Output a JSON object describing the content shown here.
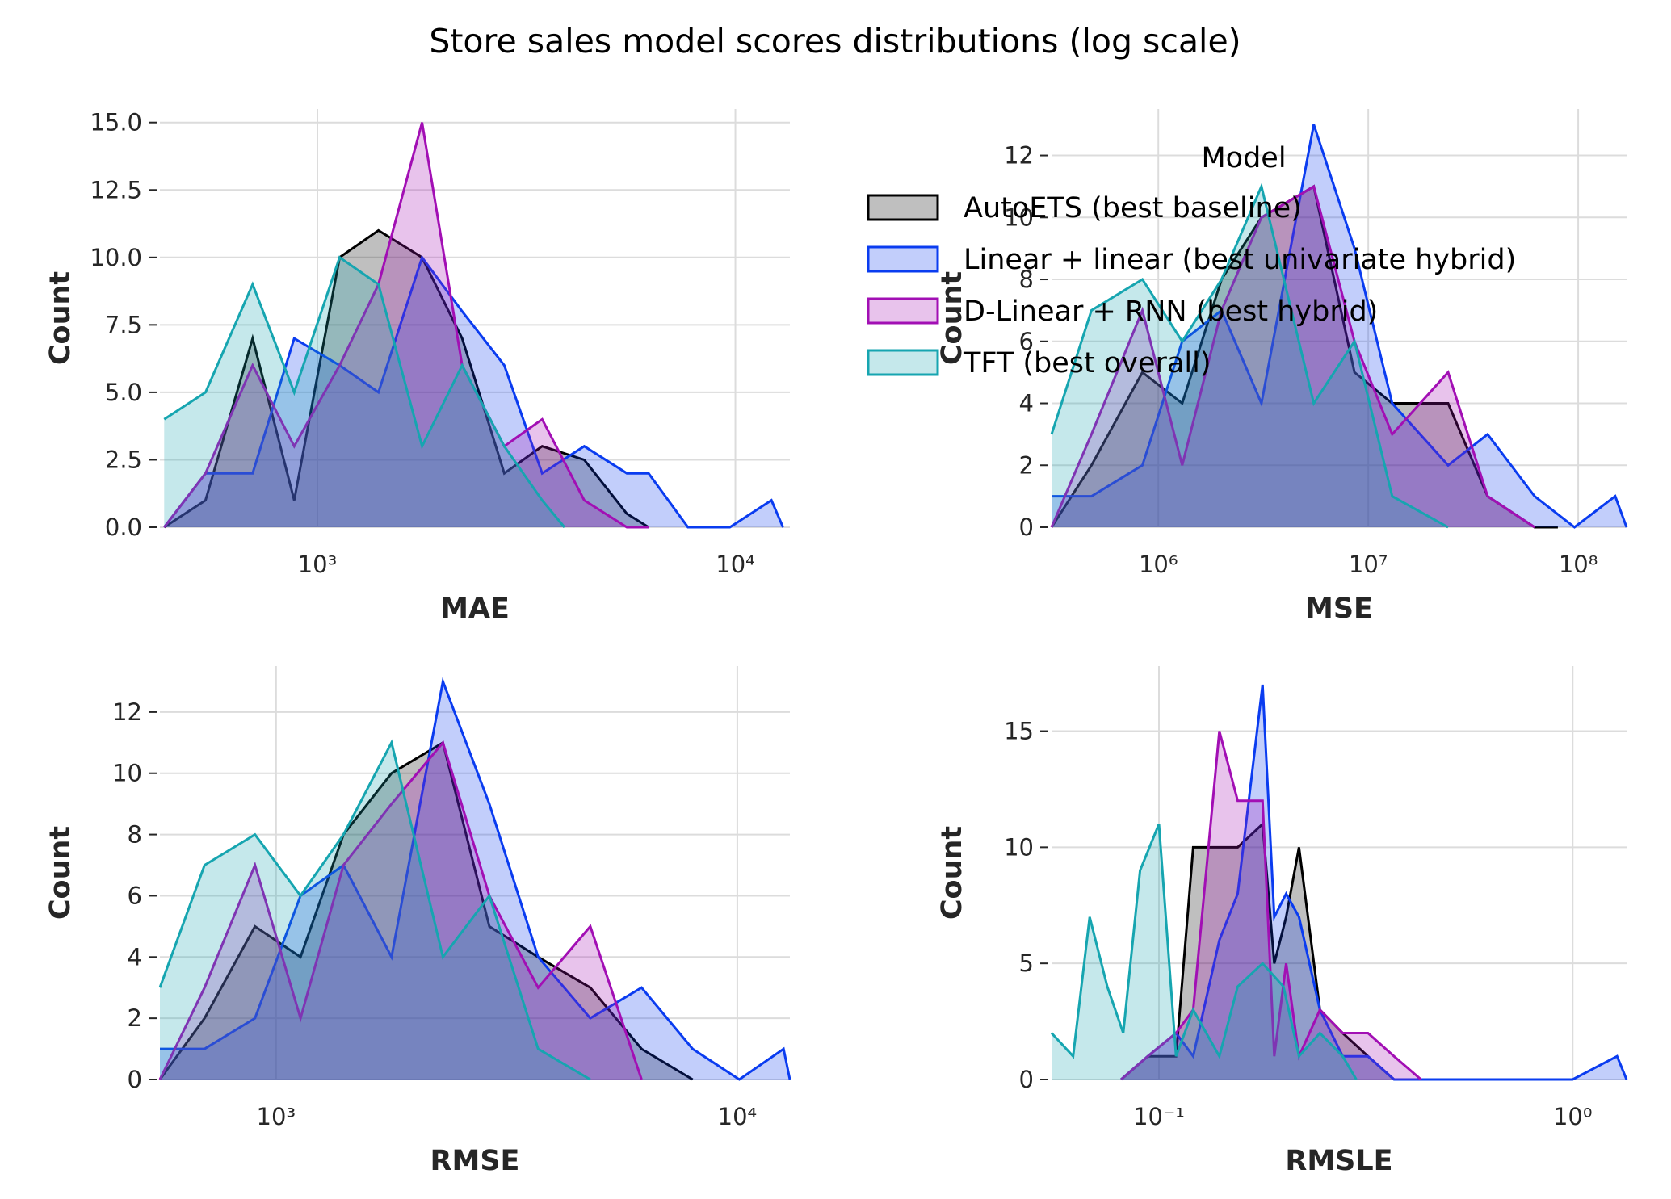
{
  "title": "Store sales model scores distributions (log scale)",
  "legend": {
    "title": "Model",
    "placement": "upper-right of top-left panel, overlapping top-right panel"
  },
  "colors": {
    "AutoETS (best baseline)": "#000000",
    "Linear + linear (best univariate hybrid)": "#0a3cf0",
    "D-Linear + RNN (best hybrid)": "#a20fb4",
    "TFT (best overall)": "#16a5b0",
    "grid": "#dcdcdc",
    "text": "#262626"
  },
  "chart_data": [
    {
      "type": "area",
      "xscale": "log",
      "xlabel": "MAE",
      "ylabel": "Count",
      "xlim": [
        420,
        13500
      ],
      "ylim": [
        0,
        15.5
      ],
      "xticks": [
        {
          "value": 1000,
          "label": "10³"
        },
        {
          "value": 10000,
          "label": "10⁴"
        }
      ],
      "yticks": [
        {
          "value": 0,
          "label": "0.0"
        },
        {
          "value": 2.5,
          "label": "2.5"
        },
        {
          "value": 5,
          "label": "5.0"
        },
        {
          "value": 7.5,
          "label": "7.5"
        },
        {
          "value": 10,
          "label": "10.0"
        },
        {
          "value": 12.5,
          "label": "12.5"
        },
        {
          "value": 15,
          "label": "15.0"
        }
      ],
      "grid": true,
      "series": [
        {
          "name": "AutoETS (best baseline)",
          "x": [
            430,
            540,
            700,
            880,
            1130,
            1400,
            1780,
            2220,
            2800,
            3450,
            4350,
            5500,
            6200
          ],
          "values": [
            0,
            1,
            7,
            1,
            10,
            11,
            10,
            7,
            2,
            3,
            2.5,
            0.5,
            0
          ]
        },
        {
          "name": "Linear + linear (best univariate hybrid)",
          "x": [
            430,
            540,
            700,
            880,
            1130,
            1400,
            1780,
            2220,
            2800,
            3450,
            4350,
            5500,
            6200,
            7700,
            9700,
            12200,
            13000
          ],
          "values": [
            0,
            2,
            2,
            7,
            6,
            5,
            10,
            8,
            6,
            2,
            3,
            2,
            2,
            0,
            0,
            1,
            0
          ]
        },
        {
          "name": "D-Linear + RNN (best hybrid)",
          "x": [
            430,
            540,
            700,
            880,
            1130,
            1400,
            1780,
            2220,
            2800,
            3450,
            4350,
            5500,
            6200
          ],
          "values": [
            0,
            2,
            6,
            3,
            6,
            9,
            15,
            6,
            3,
            4,
            1,
            0,
            0
          ]
        },
        {
          "name": "TFT (best overall)",
          "x": [
            430,
            540,
            700,
            880,
            1130,
            1400,
            1780,
            2220,
            2800,
            3450,
            3900
          ],
          "values": [
            4,
            5,
            9,
            5,
            10,
            9,
            3,
            6,
            3,
            1,
            0
          ]
        }
      ]
    },
    {
      "type": "area",
      "xscale": "log",
      "xlabel": "MSE",
      "ylabel": "Count",
      "xlim": [
        310000,
        170000000
      ],
      "ylim": [
        0,
        13.5
      ],
      "xticks": [
        {
          "value": 1000000,
          "label": "10⁶"
        },
        {
          "value": 10000000,
          "label": "10⁷"
        },
        {
          "value": 100000000,
          "label": "10⁸"
        }
      ],
      "yticks": [
        {
          "value": 0,
          "label": "0"
        },
        {
          "value": 2,
          "label": "2"
        },
        {
          "value": 4,
          "label": "4"
        },
        {
          "value": 6,
          "label": "6"
        },
        {
          "value": 8,
          "label": "8"
        },
        {
          "value": 10,
          "label": "10"
        },
        {
          "value": 12,
          "label": "12"
        }
      ],
      "grid": true,
      "series": [
        {
          "name": "AutoETS (best baseline)",
          "x": [
            310000,
            480000,
            840000,
            1300000,
            2000000,
            3100000,
            5500000,
            8600000,
            13000000,
            24000000,
            37000000,
            62000000,
            80000000
          ],
          "values": [
            0,
            2,
            5,
            4,
            8,
            10,
            11,
            5,
            4,
            4,
            1,
            0,
            0
          ]
        },
        {
          "name": "Linear + linear (best univariate hybrid)",
          "x": [
            310000,
            480000,
            840000,
            1300000,
            2000000,
            3100000,
            5500000,
            8600000,
            13000000,
            24000000,
            37000000,
            62000000,
            96000000,
            150000000,
            170000000
          ],
          "values": [
            1,
            1,
            2,
            6,
            7,
            4,
            13,
            9,
            4,
            2,
            3,
            1,
            0,
            1,
            0
          ]
        },
        {
          "name": "D-Linear + RNN (best hybrid)",
          "x": [
            310000,
            480000,
            840000,
            1300000,
            2000000,
            3100000,
            5500000,
            8600000,
            13000000,
            24000000,
            37000000,
            62000000
          ],
          "values": [
            0,
            3,
            7,
            2,
            7,
            10,
            11,
            6,
            3,
            5,
            1,
            0
          ]
        },
        {
          "name": "TFT (best overall)",
          "x": [
            310000,
            480000,
            840000,
            1300000,
            2000000,
            3100000,
            5500000,
            8600000,
            13000000,
            24000000
          ],
          "values": [
            3,
            7,
            8,
            6,
            8,
            11,
            4,
            6,
            1,
            0
          ]
        }
      ]
    },
    {
      "type": "area",
      "xscale": "log",
      "xlabel": "RMSE",
      "ylabel": "Count",
      "xlim": [
        560,
        13000
      ],
      "ylim": [
        0,
        13.5
      ],
      "xticks": [
        {
          "value": 1000,
          "label": "10³"
        },
        {
          "value": 10000,
          "label": "10⁴"
        }
      ],
      "yticks": [
        {
          "value": 0,
          "label": "0"
        },
        {
          "value": 2,
          "label": "2"
        },
        {
          "value": 4,
          "label": "4"
        },
        {
          "value": 6,
          "label": "6"
        },
        {
          "value": 8,
          "label": "8"
        },
        {
          "value": 10,
          "label": "10"
        },
        {
          "value": 12,
          "label": "12"
        }
      ],
      "grid": true,
      "series": [
        {
          "name": "AutoETS (best baseline)",
          "x": [
            560,
            700,
            900,
            1130,
            1400,
            1780,
            2300,
            2900,
            3700,
            4800,
            6200,
            8000
          ],
          "values": [
            0,
            2,
            5,
            4,
            8,
            10,
            11,
            5,
            4,
            3,
            1,
            0
          ]
        },
        {
          "name": "Linear + linear (best univariate hybrid)",
          "x": [
            560,
            700,
            900,
            1130,
            1400,
            1780,
            2300,
            2900,
            3700,
            4800,
            6200,
            8000,
            10100,
            12600,
            13000
          ],
          "values": [
            1,
            1,
            2,
            6,
            7,
            4,
            13,
            9,
            4,
            2,
            3,
            1,
            0,
            1,
            0
          ]
        },
        {
          "name": "D-Linear + RNN (best hybrid)",
          "x": [
            560,
            700,
            900,
            1130,
            1400,
            1780,
            2300,
            2900,
            3700,
            4800,
            6200
          ],
          "values": [
            0,
            3,
            7,
            2,
            7,
            9,
            11,
            6,
            3,
            5,
            0
          ]
        },
        {
          "name": "TFT (best overall)",
          "x": [
            560,
            700,
            900,
            1130,
            1400,
            1780,
            2300,
            2900,
            3700,
            4800
          ],
          "values": [
            3,
            7,
            8,
            6,
            8,
            11,
            4,
            6,
            1,
            0
          ]
        }
      ]
    },
    {
      "type": "area",
      "xscale": "log",
      "xlabel": "RMSLE",
      "ylabel": "Count",
      "xlim": [
        0.055,
        1.35
      ],
      "ylim": [
        0,
        17.8
      ],
      "xticks": [
        {
          "value": 0.1,
          "label": "10⁻¹"
        },
        {
          "value": 1,
          "label": "10⁰"
        }
      ],
      "yticks": [
        {
          "value": 0,
          "label": "0"
        },
        {
          "value": 5,
          "label": "5"
        },
        {
          "value": 10,
          "label": "10"
        },
        {
          "value": 15,
          "label": "15"
        }
      ],
      "grid": true,
      "series": [
        {
          "name": "AutoETS (best baseline)",
          "x": [
            0.081,
            0.094,
            0.11,
            0.121,
            0.14,
            0.155,
            0.178,
            0.19,
            0.203,
            0.218,
            0.245,
            0.278,
            0.32,
            0.37
          ],
          "values": [
            0,
            1,
            1,
            10,
            10,
            10,
            11,
            5,
            7,
            10,
            3,
            2,
            1,
            0
          ]
        },
        {
          "name": "Linear + linear (best univariate hybrid)",
          "x": [
            0.081,
            0.094,
            0.11,
            0.121,
            0.14,
            0.155,
            0.178,
            0.19,
            0.203,
            0.218,
            0.245,
            0.278,
            0.32,
            0.37,
            0.43,
            0.5,
            1.0,
            1.28,
            1.35
          ],
          "values": [
            0,
            1,
            2,
            1,
            6,
            8,
            17,
            7,
            8,
            7,
            3,
            1,
            1,
            0,
            0,
            0,
            0,
            1,
            0
          ]
        },
        {
          "name": "D-Linear + RNN (best hybrid)",
          "x": [
            0.081,
            0.094,
            0.11,
            0.121,
            0.14,
            0.155,
            0.178,
            0.19,
            0.203,
            0.218,
            0.245,
            0.278,
            0.32,
            0.37,
            0.43
          ],
          "values": [
            0,
            1,
            2,
            3,
            15,
            12,
            12,
            1,
            5,
            1,
            3,
            2,
            2,
            1,
            0
          ]
        },
        {
          "name": "TFT (best overall)",
          "x": [
            0.055,
            0.062,
            0.068,
            0.075,
            0.082,
            0.09,
            0.1,
            0.11,
            0.121,
            0.14,
            0.155,
            0.178,
            0.2,
            0.218,
            0.245,
            0.278,
            0.3
          ],
          "values": [
            2,
            1,
            7,
            4,
            2,
            9,
            11,
            1,
            3,
            1,
            4,
            5,
            4,
            1,
            2,
            1,
            0
          ]
        }
      ]
    }
  ]
}
